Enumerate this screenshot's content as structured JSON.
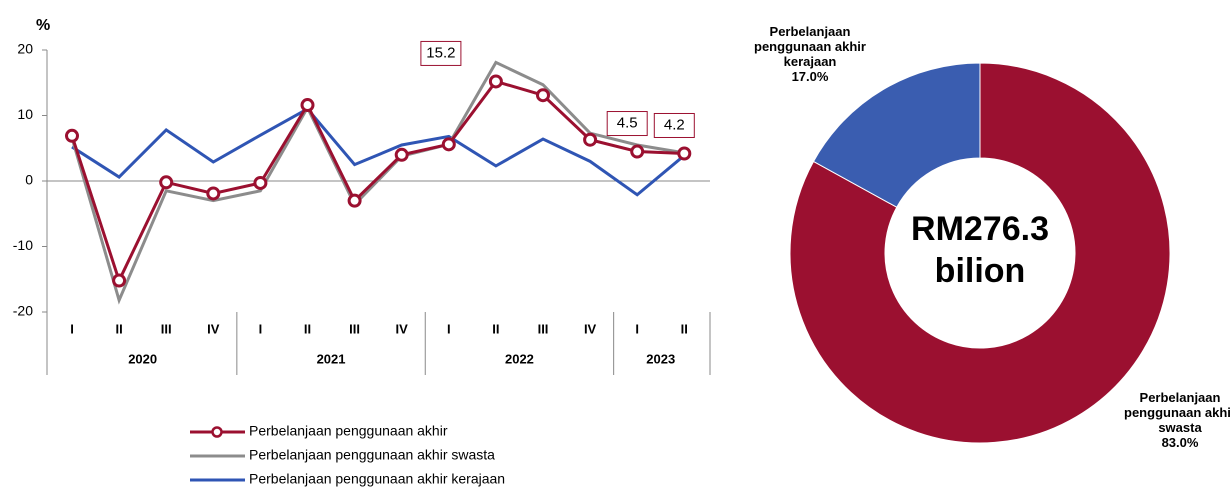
{
  "chart_data": [
    {
      "type": "line",
      "y_axis_label": "%",
      "categories": [
        "I",
        "II",
        "III",
        "IV",
        "I",
        "II",
        "III",
        "IV",
        "I",
        "II",
        "III",
        "IV",
        "I",
        "II"
      ],
      "groups": [
        "2020",
        "2021",
        "2022",
        "2023"
      ],
      "group_sizes": [
        4,
        4,
        4,
        2
      ],
      "ylim": [
        -20,
        20
      ],
      "yticks": [
        20,
        10,
        0,
        -10,
        -20
      ],
      "series": [
        {
          "name": "Perbelanjaan penggunaan akhir",
          "color": "#9b1030",
          "marker": true,
          "values": [
            6.9,
            -15.2,
            -0.2,
            -1.9,
            -0.3,
            11.6,
            -3.0,
            4.0,
            5.6,
            15.2,
            13.1,
            6.3,
            4.5,
            4.2
          ],
          "value_labels": [
            null,
            null,
            null,
            null,
            null,
            null,
            null,
            null,
            null,
            "15.2",
            null,
            null,
            "4.5",
            "4.2"
          ]
        },
        {
          "name": "Perbelanjaan penggunaan akhir swasta",
          "color": "#8c8c8c",
          "marker": false,
          "values": [
            6.6,
            -18.2,
            -1.5,
            -3.0,
            -1.5,
            11.2,
            -3.6,
            3.8,
            5.6,
            18.1,
            14.7,
            7.3,
            5.5,
            4.3
          ]
        },
        {
          "name": "Perbelanjaan penggunaan akhir kerajaan",
          "color": "#2f55b4",
          "marker": false,
          "values": [
            5.2,
            0.6,
            7.8,
            2.9,
            7.0,
            11.0,
            2.5,
            5.5,
            6.8,
            2.3,
            6.4,
            3.0,
            -2.1,
            3.9
          ]
        }
      ]
    },
    {
      "type": "donut",
      "center_label": [
        "RM276.3",
        "bilion"
      ],
      "categories": [
        "Perbelanjaan penggunaan akhir swasta",
        "Perbelanjaan penggunaan akhir kerajaan"
      ],
      "values": [
        83.0,
        17.0
      ],
      "value_labels": [
        "83.0%",
        "17.0%"
      ],
      "colors": [
        "#9b1030",
        "#3a5db0"
      ]
    }
  ]
}
